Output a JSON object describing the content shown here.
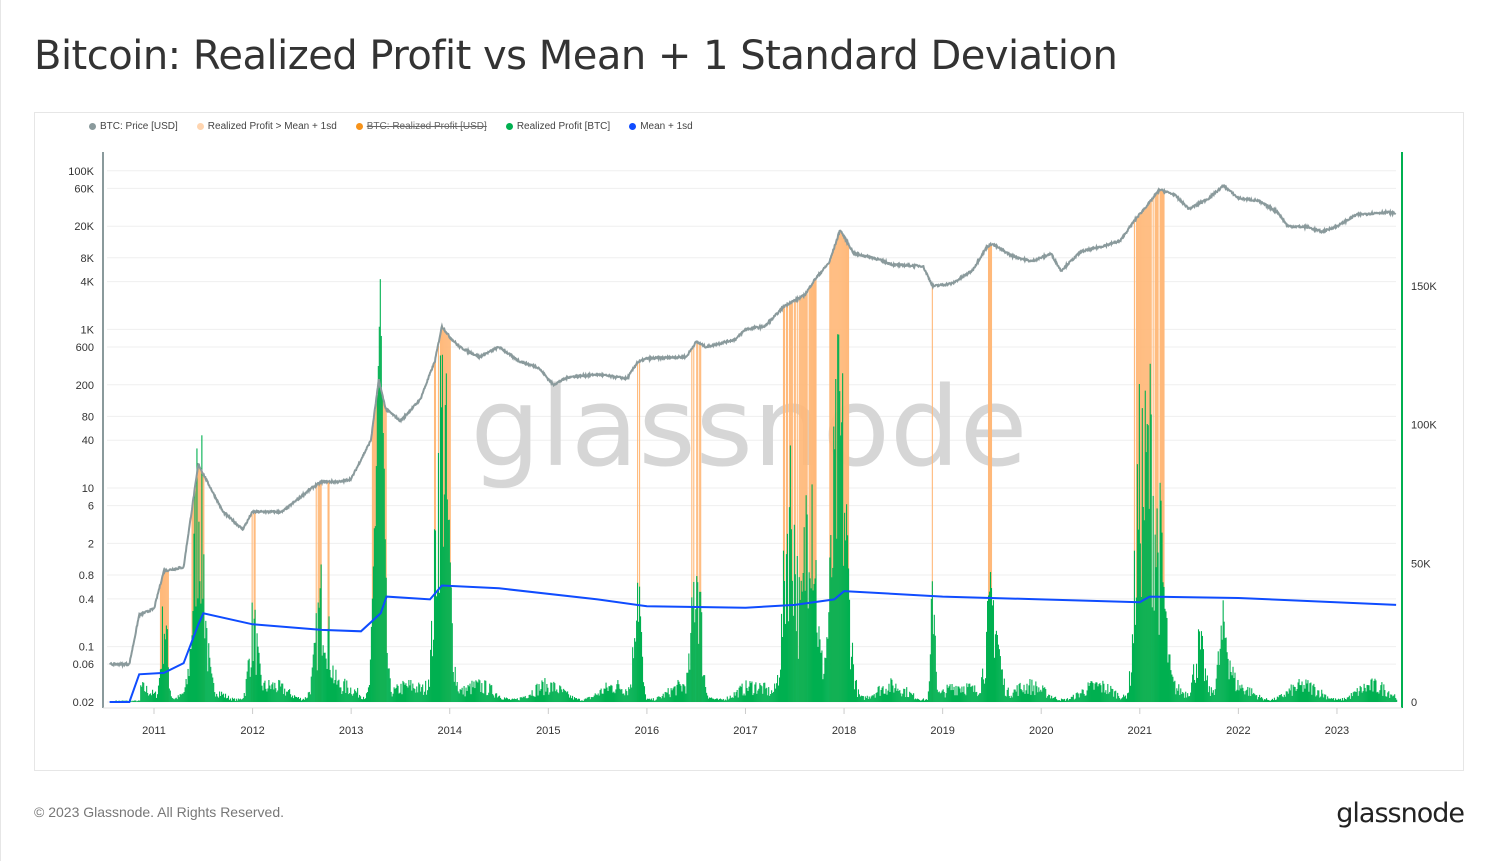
{
  "title": "Bitcoin: Realized Profit vs Mean + 1 Standard Deviation",
  "footer": "© 2023 Glassnode. All Rights Reserved.",
  "brand": "glassnode",
  "watermark": "glassnode",
  "colors": {
    "price": "#8a9a9c",
    "orange": "#ffb97a",
    "orange_legend": "#ffd5b0",
    "orange_strike": "#f7931a",
    "green": "#00b050",
    "blue": "#0f4cff"
  },
  "legend": [
    {
      "label": "BTC: Price [USD]",
      "color": "#8a9a9c",
      "disabled": false
    },
    {
      "label": "Realized Profit > Mean + 1sd",
      "color": "#ffd5b0",
      "disabled": false
    },
    {
      "label": "BTC: Realized Profit [USD]",
      "color": "#f7931a",
      "disabled": true
    },
    {
      "label": "Realized Profit [BTC]",
      "color": "#00b050",
      "disabled": false
    },
    {
      "label": "Mean + 1sd",
      "color": "#0f4cff",
      "disabled": false
    }
  ],
  "chart_data": {
    "type": "line+bar",
    "title": "Bitcoin: Realized Profit vs Mean + 1 Standard Deviation",
    "x_ticks": [
      "2011",
      "2012",
      "2013",
      "2014",
      "2015",
      "2016",
      "2017",
      "2018",
      "2019",
      "2020",
      "2021",
      "2022",
      "2023"
    ],
    "xlim": [
      2010.55,
      2023.6
    ],
    "left_axis": {
      "scale": "log",
      "ylim": [
        0.02,
        100000
      ],
      "ticks": [
        "100K",
        "60K",
        "20K",
        "8K",
        "4K",
        "1K",
        "600",
        "200",
        "80",
        "40",
        "10",
        "6",
        "2",
        "0.8",
        "0.4",
        "0.1",
        "0.06",
        "0.02"
      ],
      "tick_values": [
        100000,
        60000,
        20000,
        8000,
        4000,
        1000,
        600,
        200,
        80,
        40,
        10,
        6,
        2,
        0.8,
        0.4,
        0.1,
        0.06,
        0.02
      ]
    },
    "right_axis": {
      "scale": "linear",
      "ylim": [
        0,
        200000
      ],
      "ticks": [
        "150K",
        "100K",
        "50K",
        "0"
      ],
      "tick_values": [
        150000,
        100000,
        50000,
        0
      ]
    },
    "price": [
      [
        2010.55,
        0.06
      ],
      [
        2010.75,
        0.06
      ],
      [
        2010.85,
        0.25
      ],
      [
        2011.0,
        0.3
      ],
      [
        2011.1,
        0.9
      ],
      [
        2011.3,
        1
      ],
      [
        2011.45,
        20
      ],
      [
        2011.5,
        15
      ],
      [
        2011.7,
        5
      ],
      [
        2011.9,
        3
      ],
      [
        2012.0,
        5
      ],
      [
        2012.1,
        5
      ],
      [
        2012.3,
        5
      ],
      [
        2012.6,
        10
      ],
      [
        2012.7,
        12
      ],
      [
        2012.9,
        12
      ],
      [
        2013.0,
        13
      ],
      [
        2013.2,
        40
      ],
      [
        2013.28,
        230
      ],
      [
        2013.35,
        100
      ],
      [
        2013.5,
        70
      ],
      [
        2013.7,
        130
      ],
      [
        2013.85,
        400
      ],
      [
        2013.92,
        1100
      ],
      [
        2014.0,
        800
      ],
      [
        2014.1,
        600
      ],
      [
        2014.3,
        450
      ],
      [
        2014.5,
        600
      ],
      [
        2014.7,
        400
      ],
      [
        2014.9,
        330
      ],
      [
        2015.05,
        200
      ],
      [
        2015.2,
        250
      ],
      [
        2015.5,
        270
      ],
      [
        2015.8,
        240
      ],
      [
        2015.9,
        380
      ],
      [
        2016.0,
        430
      ],
      [
        2016.4,
        450
      ],
      [
        2016.5,
        700
      ],
      [
        2016.6,
        600
      ],
      [
        2016.9,
        750
      ],
      [
        2017.0,
        1000
      ],
      [
        2017.2,
        1100
      ],
      [
        2017.4,
        2000
      ],
      [
        2017.6,
        2700
      ],
      [
        2017.7,
        4200
      ],
      [
        2017.85,
        7000
      ],
      [
        2017.96,
        18000
      ],
      [
        2018.1,
        9000
      ],
      [
        2018.3,
        8000
      ],
      [
        2018.5,
        6500
      ],
      [
        2018.8,
        6300
      ],
      [
        2018.9,
        3500
      ],
      [
        2019.1,
        3800
      ],
      [
        2019.3,
        5500
      ],
      [
        2019.45,
        11000
      ],
      [
        2019.5,
        12000
      ],
      [
        2019.7,
        8500
      ],
      [
        2019.9,
        7200
      ],
      [
        2020.1,
        9000
      ],
      [
        2020.2,
        5500
      ],
      [
        2020.4,
        9500
      ],
      [
        2020.6,
        11000
      ],
      [
        2020.8,
        13000
      ],
      [
        2020.95,
        24000
      ],
      [
        2021.1,
        40000
      ],
      [
        2021.2,
        58000
      ],
      [
        2021.35,
        50000
      ],
      [
        2021.5,
        33000
      ],
      [
        2021.7,
        45000
      ],
      [
        2021.85,
        65000
      ],
      [
        2022.0,
        45000
      ],
      [
        2022.2,
        42000
      ],
      [
        2022.4,
        30000
      ],
      [
        2022.5,
        20000
      ],
      [
        2022.7,
        19500
      ],
      [
        2022.85,
        17000
      ],
      [
        2023.0,
        20000
      ],
      [
        2023.2,
        28000
      ],
      [
        2023.5,
        30000
      ],
      [
        2023.6,
        29000
      ]
    ],
    "mean_plus_1sd": [
      [
        2010.55,
        0
      ],
      [
        2010.75,
        0
      ],
      [
        2010.85,
        10000
      ],
      [
        2011.1,
        10500
      ],
      [
        2011.3,
        14000
      ],
      [
        2011.45,
        28000
      ],
      [
        2011.5,
        32000
      ],
      [
        2012.0,
        28000
      ],
      [
        2012.7,
        26000
      ],
      [
        2013.1,
        25500
      ],
      [
        2013.3,
        32000
      ],
      [
        2013.36,
        38000
      ],
      [
        2013.8,
        37000
      ],
      [
        2013.92,
        42000
      ],
      [
        2014.5,
        41000
      ],
      [
        2015.5,
        37000
      ],
      [
        2016.0,
        34500
      ],
      [
        2017.0,
        34000
      ],
      [
        2017.5,
        35000
      ],
      [
        2017.9,
        37000
      ],
      [
        2018.0,
        40000
      ],
      [
        2019.0,
        38000
      ],
      [
        2020.0,
        37000
      ],
      [
        2021.0,
        36000
      ],
      [
        2021.1,
        38000
      ],
      [
        2022.0,
        37500
      ],
      [
        2023.6,
        35000
      ]
    ],
    "realized_profit_btc_peaks": [
      [
        2011.1,
        35000,
        0.03
      ],
      [
        2011.45,
        84000,
        0.05
      ],
      [
        2012.0,
        28000,
        0.04
      ],
      [
        2012.7,
        40000,
        0.06
      ],
      [
        2013.28,
        156000,
        0.04
      ],
      [
        2013.92,
        121000,
        0.06
      ],
      [
        2015.9,
        55000,
        0.03
      ],
      [
        2016.5,
        55000,
        0.04
      ],
      [
        2017.45,
        84000,
        0.06
      ],
      [
        2017.65,
        98000,
        0.05
      ],
      [
        2017.95,
        109000,
        0.07
      ],
      [
        2018.9,
        49000,
        0.02
      ],
      [
        2019.5,
        40000,
        0.06
      ],
      [
        2021.0,
        91000,
        0.05
      ],
      [
        2021.1,
        82000,
        0.04
      ],
      [
        2021.2,
        55000,
        0.05
      ],
      [
        2021.6,
        22000,
        0.05
      ],
      [
        2021.85,
        25000,
        0.05
      ]
    ]
  }
}
